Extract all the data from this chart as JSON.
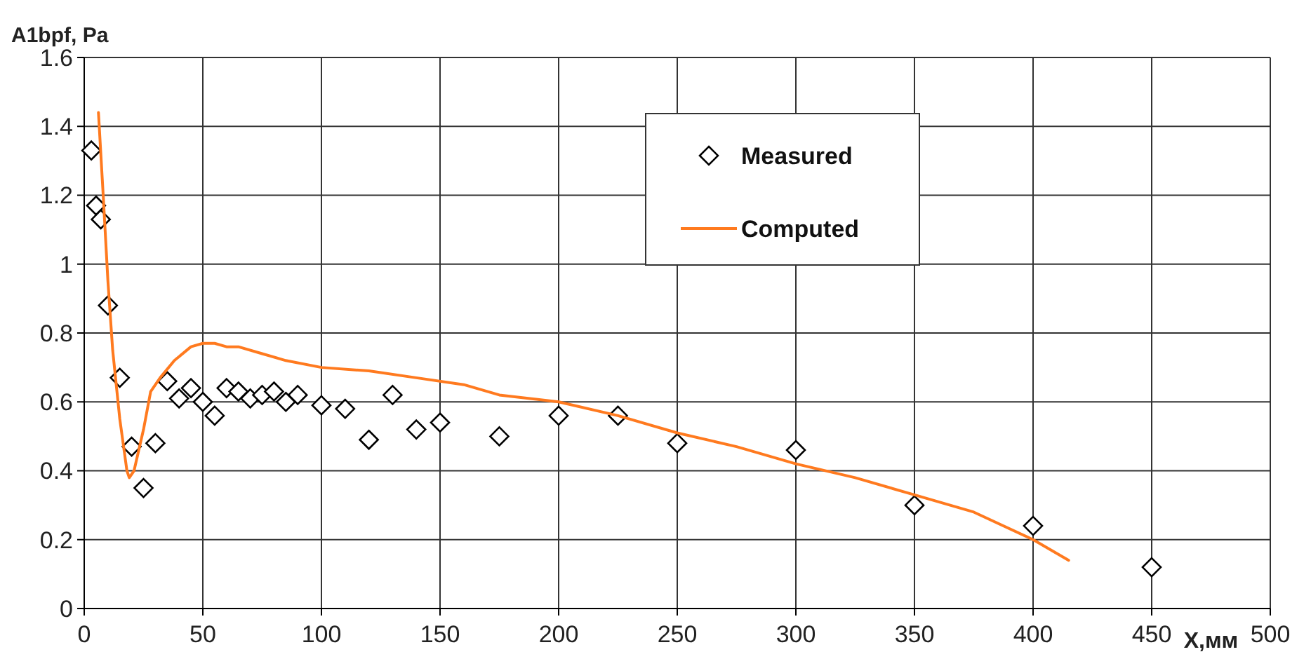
{
  "chart_data": {
    "type": "scatter",
    "xlabel": "X,мм",
    "ylabel": "A1bpf, Pa",
    "xlim": [
      0,
      500
    ],
    "ylim": [
      0,
      1.6
    ],
    "xticks": [
      0,
      50,
      100,
      150,
      200,
      250,
      300,
      350,
      400,
      450,
      500
    ],
    "yticks": [
      0,
      0.2,
      0.4,
      0.6,
      0.8,
      1,
      1.2,
      1.4,
      1.6
    ],
    "grid": true,
    "legend": "top right",
    "series": [
      {
        "name": "Measured",
        "marker": "diamond",
        "color": "#000000",
        "x": [
          3,
          5,
          7,
          10,
          15,
          20,
          25,
          30,
          35,
          40,
          45,
          50,
          55,
          60,
          65,
          70,
          75,
          80,
          85,
          90,
          100,
          110,
          120,
          130,
          140,
          150,
          175,
          200,
          225,
          250,
          300,
          350,
          400,
          450
        ],
        "values": [
          1.33,
          1.17,
          1.13,
          0.88,
          0.67,
          0.47,
          0.35,
          0.48,
          0.66,
          0.61,
          0.64,
          0.6,
          0.56,
          0.64,
          0.63,
          0.61,
          0.62,
          0.63,
          0.6,
          0.62,
          0.59,
          0.58,
          0.49,
          0.62,
          0.52,
          0.54,
          0.5,
          0.56,
          0.56,
          0.48,
          0.46,
          0.3,
          0.24,
          0.12
        ]
      },
      {
        "name": "Computed",
        "type": "line",
        "marker": "none",
        "color": "#ff7a1f",
        "x": [
          6,
          8,
          10,
          12,
          15,
          18,
          19,
          21,
          25,
          28,
          32,
          38,
          45,
          50,
          55,
          60,
          65,
          75,
          85,
          100,
          120,
          140,
          160,
          175,
          200,
          225,
          250,
          275,
          300,
          325,
          350,
          375,
          400,
          415
        ],
        "values": [
          1.44,
          1.2,
          0.95,
          0.75,
          0.55,
          0.4,
          0.38,
          0.4,
          0.52,
          0.63,
          0.67,
          0.72,
          0.76,
          0.77,
          0.77,
          0.76,
          0.76,
          0.74,
          0.72,
          0.7,
          0.69,
          0.67,
          0.65,
          0.62,
          0.6,
          0.56,
          0.51,
          0.47,
          0.42,
          0.38,
          0.33,
          0.28,
          0.2,
          0.14
        ]
      }
    ]
  }
}
